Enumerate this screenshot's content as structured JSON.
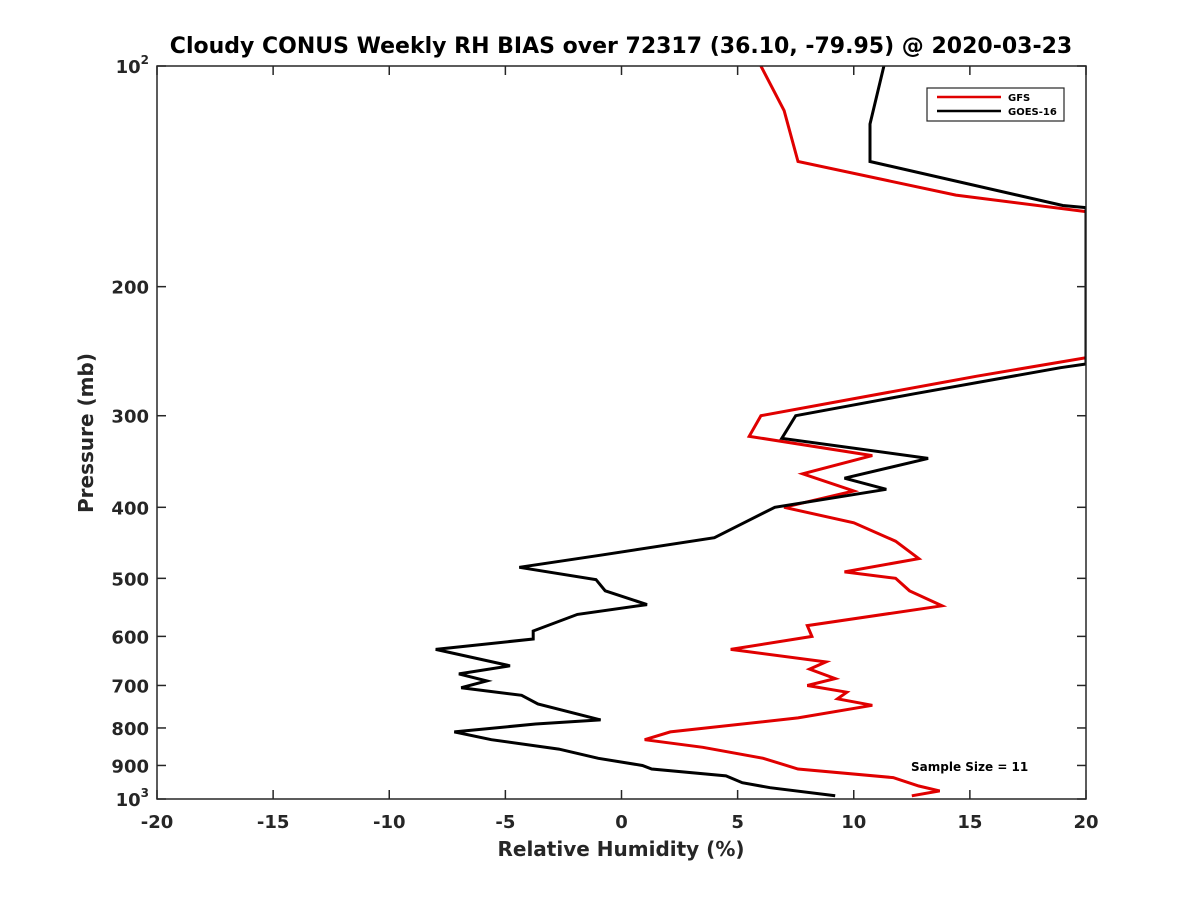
{
  "chart_data": {
    "type": "line",
    "title": "Cloudy CONUS Weekly RH BIAS over 72317 (36.10, -79.95) @ 2020-03-23",
    "xlabel": "Relative Humidity (%)",
    "ylabel": "Pressure (mb)",
    "xlim": [
      -20,
      20
    ],
    "ylim": [
      100,
      1000
    ],
    "yscale": "log",
    "yreversed": true,
    "grid": false,
    "legend_position": "top-right",
    "x_ticks": [
      "-20",
      "-15",
      "-10",
      "-5",
      "0",
      "5",
      "10",
      "15",
      "20"
    ],
    "y_ticks": [
      {
        "base": "10",
        "exp": "2"
      },
      {
        "base": "200",
        "exp": ""
      },
      {
        "base": "300",
        "exp": ""
      },
      {
        "base": "400",
        "exp": ""
      },
      {
        "base": "500",
        "exp": ""
      },
      {
        "base": "600",
        "exp": ""
      },
      {
        "base": "700",
        "exp": ""
      },
      {
        "base": "800",
        "exp": ""
      },
      {
        "base": "900",
        "exp": ""
      },
      {
        "base": "10",
        "exp": "3"
      }
    ],
    "annotation": "Sample Size = 11",
    "series": [
      {
        "name": "GFS",
        "color": "#e00000",
        "points": [
          [
            6.0,
            100
          ],
          [
            7.0,
            115
          ],
          [
            7.6,
            135
          ],
          [
            14.4,
            150
          ],
          [
            20.0,
            158
          ],
          [
            20.0,
            250
          ],
          [
            15.3,
            265
          ],
          [
            6.0,
            300
          ],
          [
            5.5,
            320
          ],
          [
            10.8,
            340
          ],
          [
            7.8,
            360
          ],
          [
            10.0,
            380
          ],
          [
            7.0,
            400
          ],
          [
            10.0,
            420
          ],
          [
            11.8,
            445
          ],
          [
            12.8,
            470
          ],
          [
            9.6,
            490
          ],
          [
            11.8,
            500
          ],
          [
            12.4,
            520
          ],
          [
            13.8,
            545
          ],
          [
            8.0,
            580
          ],
          [
            8.2,
            600
          ],
          [
            4.7,
            625
          ],
          [
            8.8,
            650
          ],
          [
            8.1,
            665
          ],
          [
            9.2,
            685
          ],
          [
            8.0,
            700
          ],
          [
            9.7,
            715
          ],
          [
            9.3,
            730
          ],
          [
            10.8,
            745
          ],
          [
            7.6,
            775
          ],
          [
            2.1,
            810
          ],
          [
            1.0,
            830
          ],
          [
            3.5,
            850
          ],
          [
            6.1,
            880
          ],
          [
            7.6,
            910
          ],
          [
            11.7,
            935
          ],
          [
            12.8,
            960
          ],
          [
            13.7,
            975
          ],
          [
            12.5,
            990
          ]
        ]
      },
      {
        "name": "GOES-16",
        "color": "#000000",
        "points": [
          [
            11.3,
            100
          ],
          [
            10.7,
            120
          ],
          [
            10.7,
            135
          ],
          [
            19.0,
            155
          ],
          [
            20.0,
            156
          ],
          [
            20.0,
            255
          ],
          [
            18.9,
            258
          ],
          [
            12.6,
            280
          ],
          [
            7.5,
            300
          ],
          [
            6.9,
            322
          ],
          [
            13.2,
            343
          ],
          [
            9.6,
            365
          ],
          [
            11.4,
            378
          ],
          [
            6.6,
            400
          ],
          [
            5.4,
            418
          ],
          [
            4.0,
            440
          ],
          [
            -0.9,
            465
          ],
          [
            -4.4,
            483
          ],
          [
            -1.1,
            502
          ],
          [
            -0.7,
            520
          ],
          [
            1.1,
            543
          ],
          [
            -1.9,
            560
          ],
          [
            -3.8,
            590
          ],
          [
            -3.8,
            605
          ],
          [
            -8.0,
            625
          ],
          [
            -4.8,
            658
          ],
          [
            -7.0,
            675
          ],
          [
            -5.8,
            690
          ],
          [
            -6.9,
            705
          ],
          [
            -4.3,
            722
          ],
          [
            -3.6,
            742
          ],
          [
            -0.9,
            780
          ],
          [
            -3.7,
            790
          ],
          [
            -7.2,
            810
          ],
          [
            -5.6,
            830
          ],
          [
            -2.7,
            855
          ],
          [
            -1.0,
            880
          ],
          [
            0.9,
            900
          ],
          [
            1.3,
            910
          ],
          [
            4.5,
            930
          ],
          [
            5.2,
            950
          ],
          [
            6.4,
            965
          ],
          [
            9.2,
            990
          ]
        ]
      }
    ]
  }
}
